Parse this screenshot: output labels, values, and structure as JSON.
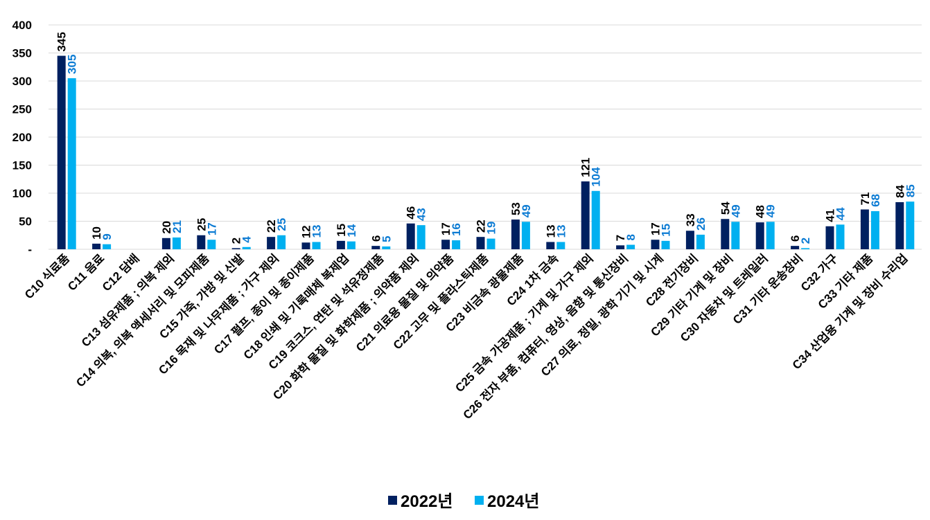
{
  "chart_data": {
    "type": "bar",
    "title": "",
    "xlabel": "",
    "ylabel": "",
    "ylim": [
      0,
      400
    ],
    "yticks": [
      0,
      50,
      100,
      150,
      200,
      250,
      300,
      350,
      400
    ],
    "ytick_labels": [
      "-",
      "50",
      "100",
      "150",
      "200",
      "250",
      "300",
      "350",
      "400"
    ],
    "grid": true,
    "legend_position": "bottom",
    "categories": [
      "C10 식료품",
      "C11 음료",
      "C12 담배",
      "C13 섬유제품 ; 의복 제외",
      "C14 의복, 의복 액세서리 및 모피제품",
      "C15 가죽, 가방 및 신발",
      "C16 목재 및 나무제품 ; 가구 제외",
      "C17 펄프, 종이 및 종이제품",
      "C18 인쇄 및 기록매체 복제업",
      "C19 코크스, 연탄 및 석유정제품",
      "C20 화학 물질 및 화학제품 ; 의약품 제외",
      "C21 의료용 물질 및 의약품",
      "C22 고무 및 플라스틱제품",
      "C23 비금속 광물제품",
      "C24 1차 금속",
      "C25 금속 가공제품 ; 기계 및 가구 제외",
      "C26 전자 부품, 컴퓨터, 영상, 음향 및 통신장비",
      "C27 의료, 정밀, 광학 기기 및 시계",
      "C28 전기장비",
      "C29 기타 기계 및 장비",
      "C30 자동차 및 트레일러",
      "C31 기타 운송장비",
      "C32 가구",
      "C33 기타 제품",
      "C34 산업용 기계 및 장비 수리업"
    ],
    "series": [
      {
        "name": "2022년",
        "color": "#002060",
        "label_color": "#000000",
        "values": [
          345,
          10,
          null,
          20,
          25,
          2,
          22,
          12,
          15,
          6,
          46,
          17,
          22,
          53,
          13,
          121,
          7,
          17,
          33,
          54,
          48,
          6,
          41,
          71,
          84
        ]
      },
      {
        "name": "2024년",
        "color": "#00B0F0",
        "label_color": "#0B7BD3",
        "values": [
          305,
          9,
          null,
          21,
          17,
          4,
          25,
          13,
          14,
          5,
          43,
          16,
          19,
          49,
          13,
          104,
          8,
          15,
          26,
          49,
          49,
          2,
          44,
          68,
          85
        ]
      }
    ]
  }
}
